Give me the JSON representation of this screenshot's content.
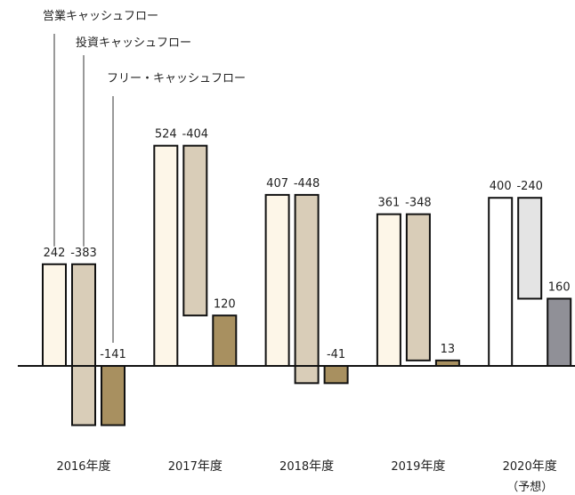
{
  "chart_data": {
    "type": "cashflow",
    "categories": [
      "2016",
      "2017",
      "2018",
      "2019",
      "2020"
    ],
    "category_suffix": "年度",
    "annotation": "（予想）",
    "ylim": [
      -200,
      600
    ],
    "series": [
      {
        "name": "営業キャッシュフロー",
        "colors": [
          "#fdf6e8",
          "#fdf6e8",
          "#fdf6e8",
          "#fdf6e8",
          "#ffffff"
        ],
        "values": [
          242,
          524,
          407,
          361,
          400
        ]
      },
      {
        "name": "投資キャッシュフロー",
        "colors": [
          "#d9cdb8",
          "#d9cdb8",
          "#d9cdb8",
          "#d9cdb8",
          "#e4e4e4"
        ],
        "values": [
          -383,
          -404,
          -448,
          -348,
          -240
        ]
      },
      {
        "name": "フリー・キャッシュフロー",
        "colors": [
          "#a89060",
          "#a89060",
          "#a89060",
          "#a89060",
          "#909097"
        ],
        "values": [
          -141,
          120,
          -41,
          13,
          160
        ]
      }
    ]
  }
}
